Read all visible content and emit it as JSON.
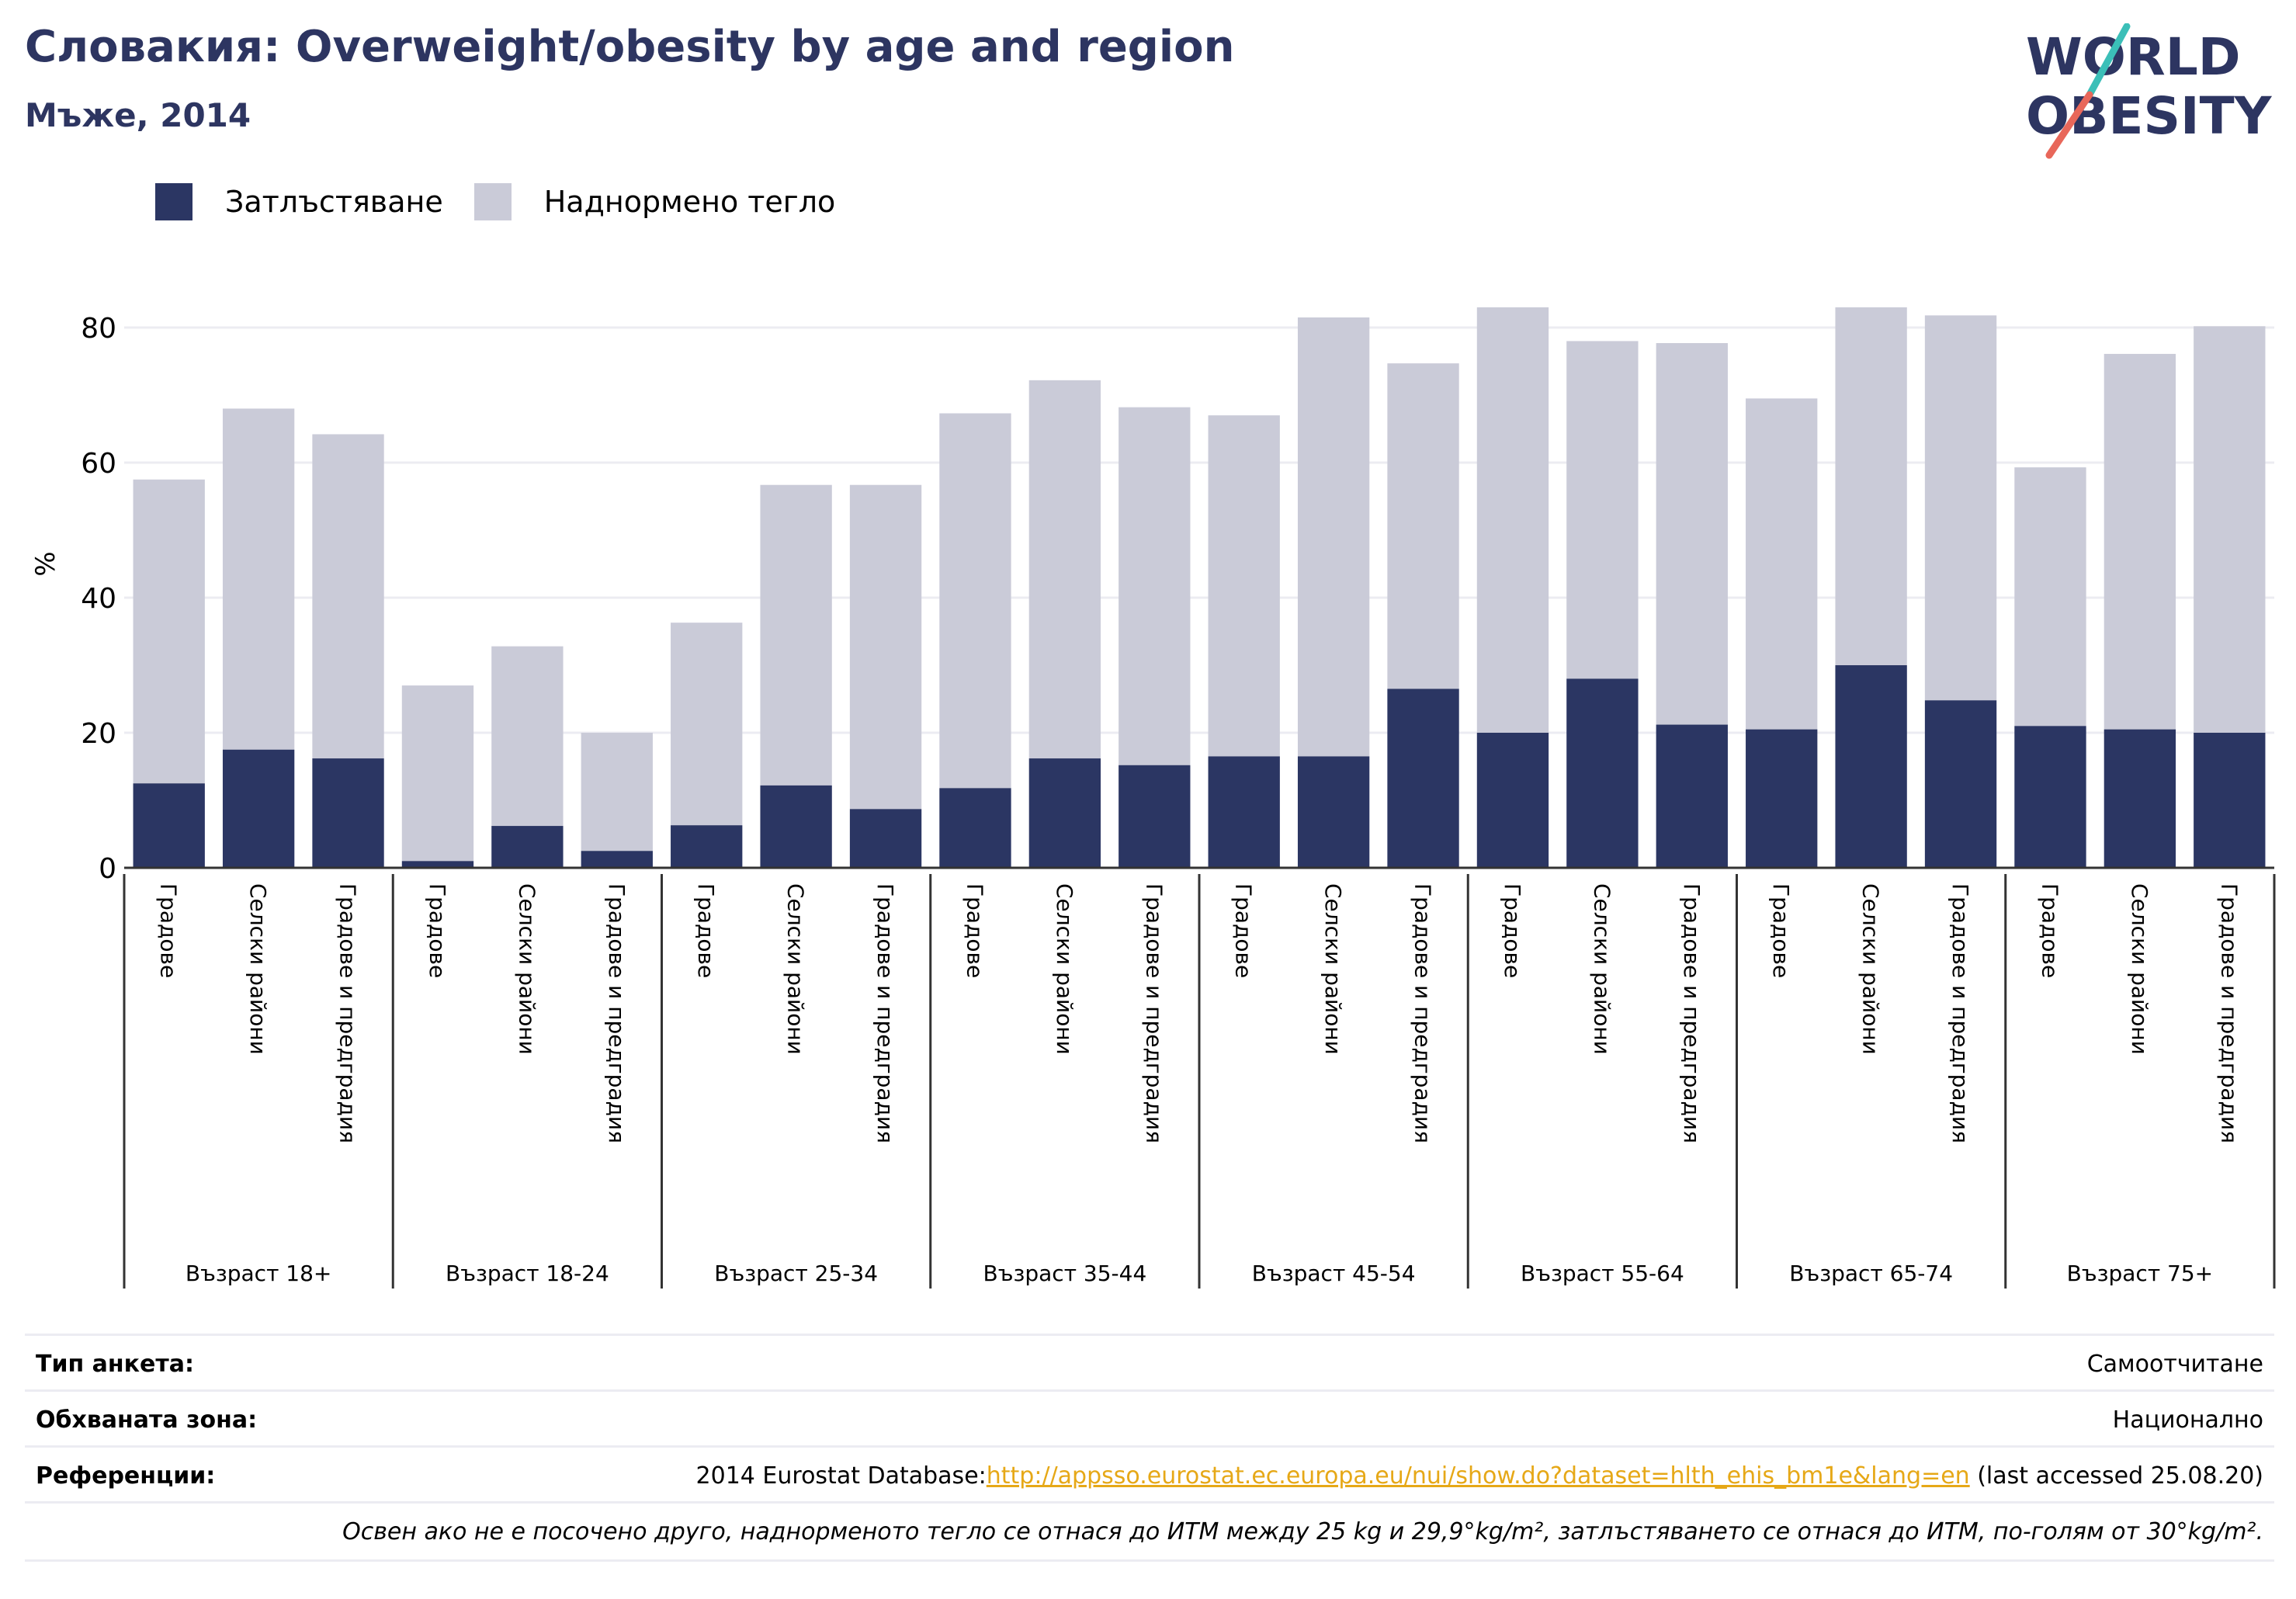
{
  "header": {
    "title": "Словакия: Overweight/obesity by age and region",
    "subtitle": "Мъже, 2014"
  },
  "logo": {
    "line1": "WORLD",
    "line2": "OBESITY"
  },
  "legend": [
    {
      "label": "Затлъстяване",
      "color": "#2b3663"
    },
    {
      "label": "Наднормено тегло",
      "color": "#cacbd8"
    }
  ],
  "chart_data": {
    "type": "bar",
    "stacked": true,
    "ylabel": "%",
    "ylim": [
      0,
      90
    ],
    "yticks": [
      0,
      20,
      40,
      60,
      80
    ],
    "grid": true,
    "legend_position": "top-left",
    "groups": [
      "Възраст 18+",
      "Възраст 18-24",
      "Възраст 25-34",
      "Възраст 35-44",
      "Възраст 45-54",
      "Възраст 55-64",
      "Възраст 65-74",
      "Възраст 75+"
    ],
    "subcategories": [
      "Градове",
      "Селски райони",
      "Градове и предградия"
    ],
    "series": [
      {
        "name": "Затлъстяване",
        "color": "#2b3663",
        "values": [
          12.5,
          17.5,
          16.2,
          1.0,
          6.2,
          2.5,
          6.3,
          12.2,
          8.7,
          11.8,
          16.2,
          15.2,
          16.5,
          16.5,
          26.5,
          20.0,
          28.0,
          21.2,
          20.5,
          30.0,
          24.8,
          21.0,
          20.5,
          20.0
        ]
      },
      {
        "name": "Наднормено тегло",
        "color": "#cacbd8",
        "values": [
          45.0,
          50.5,
          48.0,
          26.0,
          26.6,
          17.5,
          30.0,
          44.5,
          48.0,
          55.5,
          56.0,
          53.0,
          50.5,
          65.0,
          48.2,
          63.0,
          50.0,
          56.5,
          49.0,
          53.0,
          57.0,
          38.3,
          55.6,
          60.2
        ]
      }
    ]
  },
  "meta": {
    "survey_type_label": "Тип анкета:",
    "survey_type_value": "Самоотчитане",
    "coverage_label": "Обхваната зона:",
    "coverage_value": "Национално",
    "references_label": "Референции:",
    "references_prefix": "2014 Eurostat Database:",
    "references_link": "http://appsso.eurostat.ec.europa.eu/nui/show.do?dataset=hlth_ehis_bm1e&lang=en",
    "references_suffix": " (last accessed 25.08.20)",
    "note": "Освен ако не е посочено друго, наднорменото тегло се отнася до ИТМ между 25 kg и 29,9°kg/m², затлъстяването се отнася до ИТМ, по-голям от 30°kg/m²."
  }
}
